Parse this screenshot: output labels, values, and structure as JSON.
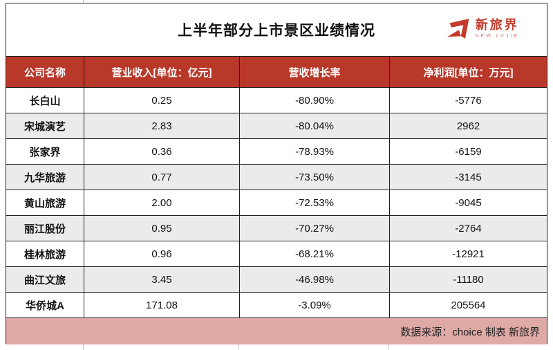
{
  "title": "上半年部分上市景区业绩情况",
  "logo": {
    "name_cn": "新旅界",
    "name_en": "NEW LVJIE",
    "brand_red": "#c23b2c"
  },
  "colors": {
    "header_bg": "#b8382a",
    "footer_bg": "#dfa9a6",
    "alt_row_bg": "#ebebeb",
    "border": "#202020"
  },
  "chart_data": {
    "type": "table",
    "title": "上半年部分上市景区业绩情况",
    "columns": [
      "公司名称",
      "营业收入[单位：亿元]",
      "营收增长率",
      "净利润[单位：万元]"
    ],
    "rows": [
      [
        "长白山",
        "0.25",
        "-80.90%",
        "-5776"
      ],
      [
        "宋城演艺",
        "2.83",
        "-80.04%",
        "2962"
      ],
      [
        "张家界",
        "0.36",
        "-78.93%",
        "-6159"
      ],
      [
        "九华旅游",
        "0.77",
        "-73.50%",
        "-3145"
      ],
      [
        "黄山旅游",
        "2.00",
        "-72.53%",
        "-9045"
      ],
      [
        "丽江股份",
        "0.95",
        "-70.27%",
        "-2764"
      ],
      [
        "桂林旅游",
        "0.96",
        "-68.21%",
        "-12921"
      ],
      [
        "曲江文旅",
        "3.45",
        "-46.98%",
        "-11180"
      ],
      [
        "华侨城A",
        "171.08",
        "-3.09%",
        "205564"
      ]
    ],
    "source": "数据来源：choice 制表 新旅界"
  }
}
